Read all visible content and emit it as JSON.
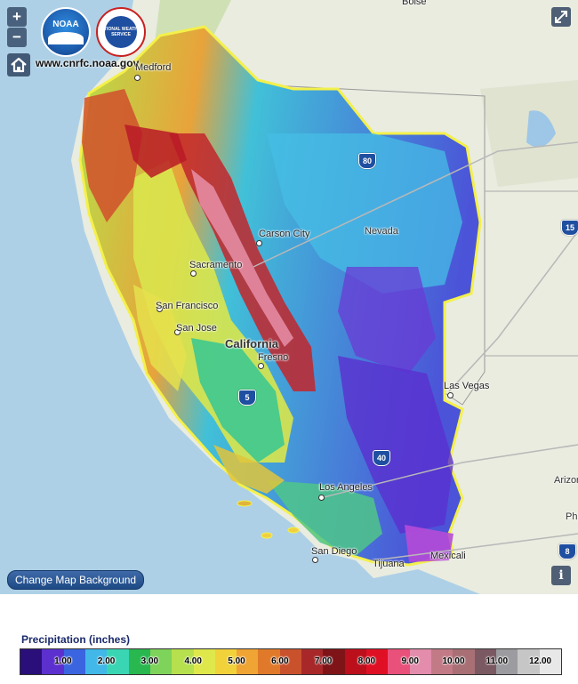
{
  "header": {
    "site_url": "www.cnrfc.noaa.gov",
    "noaa_logo_text": "NOAA",
    "nws_logo_text": "NATIONAL WEATHER SERVICE"
  },
  "controls": {
    "zoom_in": "+",
    "zoom_out": "−",
    "home_icon": "home-icon",
    "expand_icon": "expand-icon",
    "info_label": "i",
    "change_background_label": "Change Map Background"
  },
  "map": {
    "state_labels": [
      "California",
      "Nevada"
    ],
    "cities": [
      {
        "name": "Boise"
      },
      {
        "name": "Medford"
      },
      {
        "name": "Carson City"
      },
      {
        "name": "Sacramento"
      },
      {
        "name": "San Francisco"
      },
      {
        "name": "San Jose"
      },
      {
        "name": "Fresno"
      },
      {
        "name": "Las Vegas"
      },
      {
        "name": "Los Angeles"
      },
      {
        "name": "San Diego"
      },
      {
        "name": "Mexicali"
      },
      {
        "name": "Tijuana"
      },
      {
        "name": "Arizona"
      },
      {
        "name": "Phoenix"
      }
    ],
    "highways": [
      "80",
      "15",
      "5",
      "40",
      "8"
    ]
  },
  "legend": {
    "title": "Precipitation (inches)",
    "ticks": [
      "1.00",
      "2.00",
      "3.00",
      "4.00",
      "5.00",
      "6.00",
      "7.00",
      "8.00",
      "9.00",
      "10.00",
      "11.00",
      "12.00"
    ],
    "colors": [
      "#2a0f7a",
      "#5c2fcf",
      "#3a64e0",
      "#41b8e8",
      "#3ad6b4",
      "#29b84f",
      "#7ed35a",
      "#b6e04d",
      "#dfe84a",
      "#f1d23b",
      "#f0a434",
      "#e07a2a",
      "#c9522d",
      "#a8282a",
      "#7e1418",
      "#bb0f1c",
      "#e01024",
      "#e9507a",
      "#e38cab",
      "#c27a86",
      "#a86f75",
      "#7b5962",
      "#9c9ca0",
      "#c6c6c6",
      "#e8e8e8"
    ]
  }
}
